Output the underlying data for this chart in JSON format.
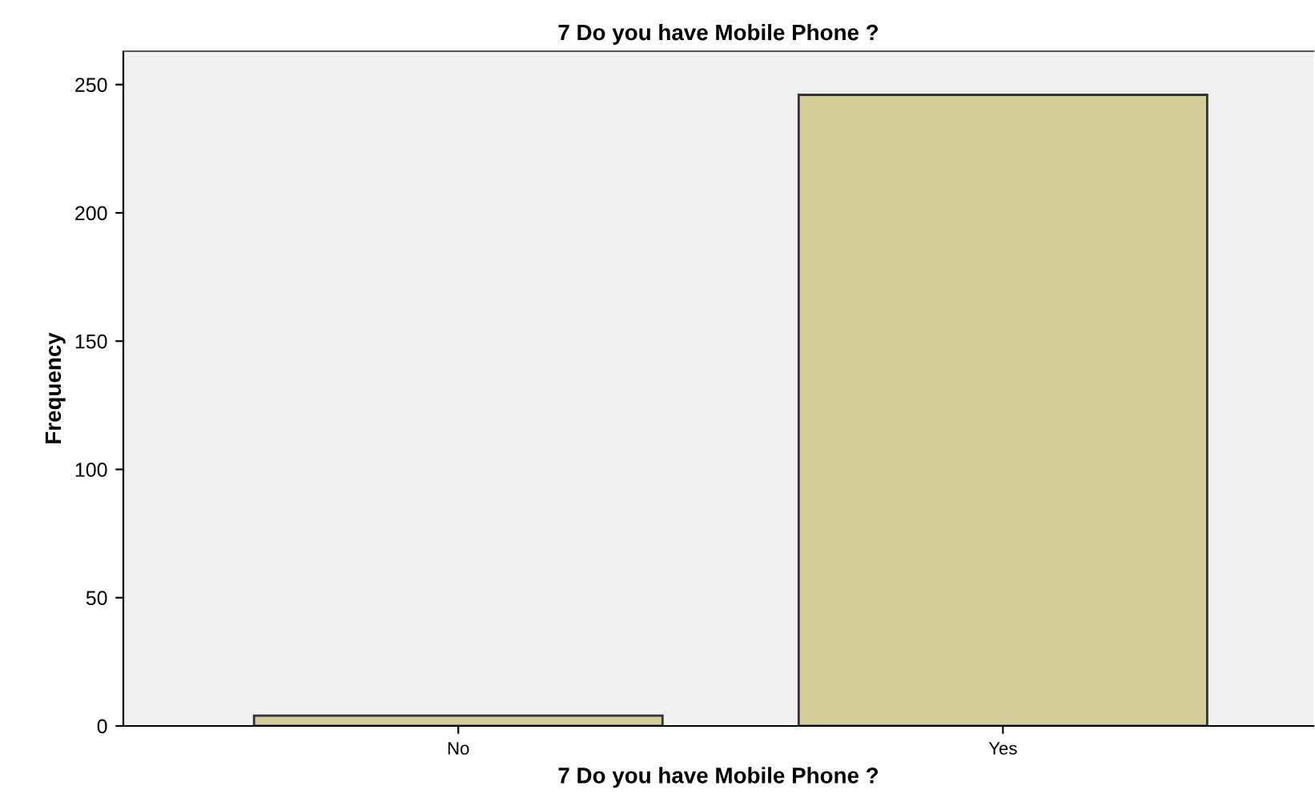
{
  "chart_data": {
    "type": "bar",
    "title": "7 Do you have Mobile Phone ?",
    "xlabel": "7 Do you have Mobile Phone ?",
    "ylabel": "Frequency",
    "categories": [
      "No",
      "Yes"
    ],
    "values": [
      4,
      246
    ],
    "color": "#d3ce97",
    "ylim": [
      0,
      263
    ],
    "yticks": [
      0,
      50,
      100,
      150,
      200,
      250
    ],
    "grid": false,
    "legend": false
  }
}
